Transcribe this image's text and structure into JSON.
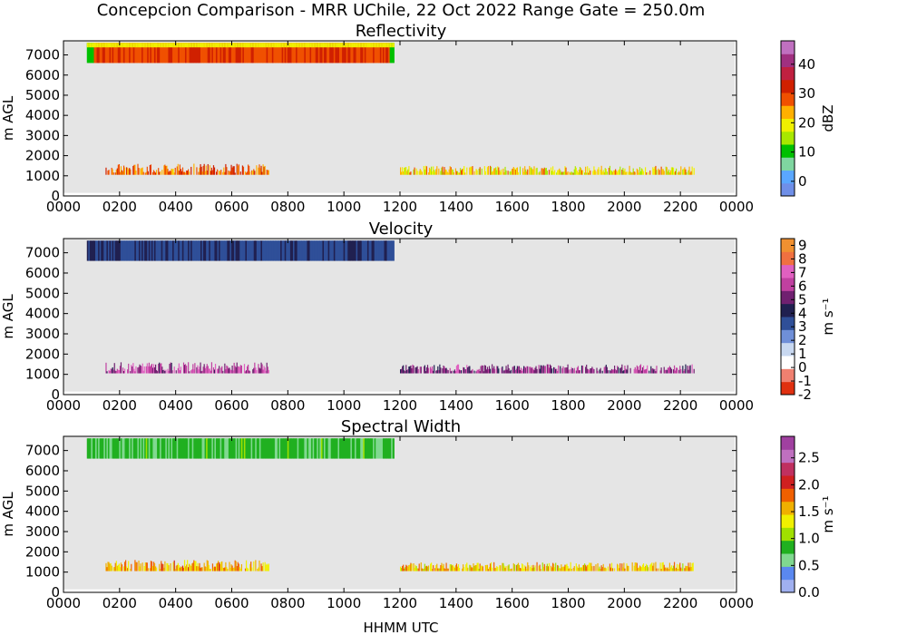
{
  "figure": {
    "suptitle": "Concepcion Comparison - MRR UChile, 22 Oct 2022 Range Gate = 250.0m",
    "xlabel": "HHMM UTC",
    "plot_background": "#e5e5e5"
  },
  "chart_data": [
    {
      "type": "heatmap",
      "title": "Reflectivity",
      "xlabel": "HHMM UTC",
      "ylabel": "m AGL",
      "x_ticks": [
        "0000",
        "0200",
        "0400",
        "0600",
        "0800",
        "1000",
        "1200",
        "1400",
        "1600",
        "1800",
        "2000",
        "2200",
        "0000"
      ],
      "y_ticks": [
        0,
        1000,
        2000,
        3000,
        4000,
        5000,
        6000,
        7000
      ],
      "ylim": [
        0,
        7700
      ],
      "colorbar": {
        "label": "dBZ",
        "ticks": [
          0,
          10,
          20,
          30,
          40
        ],
        "range": [
          -5,
          48
        ],
        "colors": [
          "#6f8fe8",
          "#5aa7ff",
          "#7fd6a0",
          "#00c000",
          "#a8e800",
          "#f0f000",
          "#ffb000",
          "#f05000",
          "#d02000",
          "#c02040",
          "#a03080",
          "#c070c0"
        ]
      },
      "bands": [
        {
          "name": "upper",
          "time_start": "0050",
          "time_end": "1145",
          "height_range": [
            6600,
            7600
          ],
          "typical_value": 30,
          "edge_value": 10,
          "top_value": 20
        },
        {
          "name": "lower-a",
          "time_start": "0130",
          "time_end": "0720",
          "height_range": [
            900,
            1600
          ],
          "typical_value": 28
        },
        {
          "name": "lower-b",
          "time_start": "1200",
          "time_end": "2230",
          "height_range": [
            900,
            1500
          ],
          "typical_value": 21
        }
      ]
    },
    {
      "type": "heatmap",
      "title": "Velocity",
      "xlabel": "HHMM UTC",
      "ylabel": "m AGL",
      "x_ticks": [
        "0000",
        "0200",
        "0400",
        "0600",
        "0800",
        "1000",
        "1200",
        "1400",
        "1600",
        "1800",
        "2000",
        "2200",
        "0000"
      ],
      "y_ticks": [
        0,
        1000,
        2000,
        3000,
        4000,
        5000,
        6000,
        7000
      ],
      "ylim": [
        0,
        7700
      ],
      "colorbar": {
        "label": "m s⁻¹",
        "ticks": [
          -2,
          -1,
          0,
          1,
          2,
          3,
          4,
          5,
          6,
          7,
          8,
          9
        ],
        "range": [
          -2,
          9.5
        ],
        "colors": [
          "#e03010",
          "#f08070",
          "#ffffff",
          "#c8d8f0",
          "#6f8fd8",
          "#2f4f98",
          "#202050",
          "#702070",
          "#c040a0",
          "#e060c0",
          "#f07040",
          "#f09030"
        ]
      },
      "bands": [
        {
          "name": "upper",
          "time_start": "0050",
          "time_end": "1145",
          "height_range": [
            6600,
            7600
          ],
          "typical_value": 3.5
        },
        {
          "name": "lower-a",
          "time_start": "0130",
          "time_end": "0720",
          "height_range": [
            900,
            1600
          ],
          "typical_value": 6
        },
        {
          "name": "lower-b",
          "time_start": "1200",
          "time_end": "2230",
          "height_range": [
            900,
            1500
          ],
          "typical_value": 5.5
        }
      ]
    },
    {
      "type": "heatmap",
      "title": "Spectral Width",
      "xlabel": "HHMM UTC",
      "ylabel": "m AGL",
      "x_ticks": [
        "0000",
        "0200",
        "0400",
        "0600",
        "0800",
        "1000",
        "1200",
        "1400",
        "1600",
        "1800",
        "2000",
        "2200",
        "0000"
      ],
      "y_ticks": [
        0,
        1000,
        2000,
        3000,
        4000,
        5000,
        6000,
        7000
      ],
      "ylim": [
        0,
        7700
      ],
      "colorbar": {
        "label": "m s⁻¹",
        "ticks": [
          0.0,
          0.5,
          1.0,
          1.5,
          2.0,
          2.5
        ],
        "range": [
          0,
          2.9
        ],
        "colors": [
          "#a0b0f0",
          "#5a88f0",
          "#80d890",
          "#20b020",
          "#a0e000",
          "#f0f000",
          "#f0b000",
          "#f06000",
          "#d02020",
          "#c03060",
          "#c070c0",
          "#a040a0"
        ]
      },
      "bands": [
        {
          "name": "upper",
          "time_start": "0050",
          "time_end": "1145",
          "height_range": [
            6600,
            7600
          ],
          "typical_value": 0.8
        },
        {
          "name": "lower-a",
          "time_start": "0130",
          "time_end": "0720",
          "height_range": [
            900,
            1600
          ],
          "typical_value": 1.6
        },
        {
          "name": "lower-b",
          "time_start": "1200",
          "time_end": "2230",
          "height_range": [
            900,
            1500
          ],
          "typical_value": 1.5
        }
      ]
    }
  ]
}
